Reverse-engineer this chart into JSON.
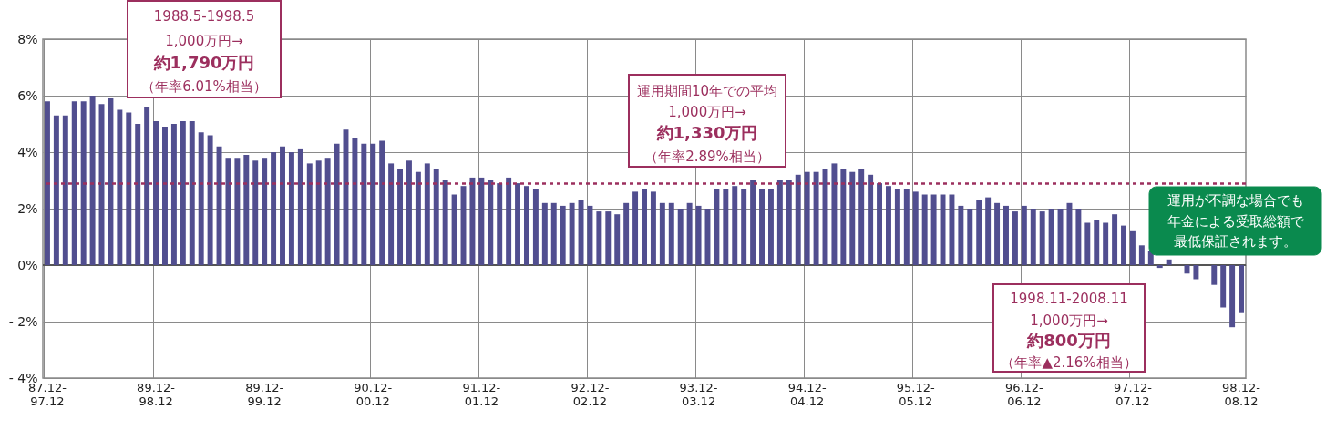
{
  "chart_data": {
    "type": "bar",
    "categories": [
      "87.12-97.12",
      null,
      null,
      null,
      null,
      null,
      null,
      null,
      null,
      null,
      null,
      null,
      "89.12-98.12",
      null,
      null,
      null,
      null,
      null,
      null,
      null,
      null,
      null,
      null,
      null,
      "89.12-99.12",
      null,
      null,
      null,
      null,
      null,
      null,
      null,
      null,
      null,
      null,
      null,
      "90.12-00.12",
      null,
      null,
      null,
      null,
      null,
      null,
      null,
      null,
      null,
      null,
      null,
      "91.12-01.12",
      null,
      null,
      null,
      null,
      null,
      null,
      null,
      null,
      null,
      null,
      null,
      "92.12-02.12",
      null,
      null,
      null,
      null,
      null,
      null,
      null,
      null,
      null,
      null,
      null,
      "93.12-03.12",
      null,
      null,
      null,
      null,
      null,
      null,
      null,
      null,
      null,
      null,
      null,
      "94.12-04.12",
      null,
      null,
      null,
      null,
      null,
      null,
      null,
      null,
      null,
      null,
      null,
      "95.12-05.12",
      null,
      null,
      null,
      null,
      null,
      null,
      null,
      null,
      null,
      null,
      null,
      "96.12-06.12",
      null,
      null,
      null,
      null,
      null,
      null,
      null,
      null,
      null,
      null,
      null,
      "97.12-07.12",
      null,
      null,
      null,
      null,
      null,
      null,
      null,
      null,
      null,
      null,
      null,
      "98.12-08.12"
    ],
    "values": [
      5.8,
      5.3,
      5.3,
      5.8,
      5.8,
      6.0,
      5.7,
      5.9,
      5.5,
      5.4,
      5.0,
      5.6,
      5.1,
      4.9,
      5.0,
      5.1,
      5.1,
      4.7,
      4.6,
      4.2,
      3.8,
      3.8,
      3.9,
      3.7,
      3.8,
      4.0,
      4.2,
      4.0,
      4.1,
      3.6,
      3.7,
      3.8,
      4.3,
      4.8,
      4.5,
      4.3,
      4.3,
      4.4,
      3.6,
      3.4,
      3.7,
      3.3,
      3.6,
      3.4,
      3.0,
      2.5,
      2.8,
      3.1,
      3.1,
      3.0,
      2.9,
      3.1,
      2.9,
      2.8,
      2.7,
      2.2,
      2.2,
      2.1,
      2.2,
      2.3,
      2.1,
      1.9,
      1.9,
      1.8,
      2.2,
      2.6,
      2.7,
      2.6,
      2.2,
      2.2,
      2.0,
      2.2,
      2.1,
      2.0,
      2.7,
      2.7,
      2.8,
      2.7,
      3.0,
      2.7,
      2.7,
      3.0,
      3.0,
      3.2,
      3.3,
      3.3,
      3.4,
      3.6,
      3.4,
      3.3,
      3.4,
      3.2,
      2.9,
      2.8,
      2.7,
      2.7,
      2.6,
      2.5,
      2.5,
      2.5,
      2.5,
      2.1,
      2.0,
      2.3,
      2.4,
      2.2,
      2.1,
      1.9,
      2.1,
      2.0,
      1.9,
      2.0,
      2.0,
      2.2,
      2.0,
      1.5,
      1.6,
      1.5,
      1.8,
      1.4,
      1.2,
      0.7,
      0.5,
      -0.1,
      0.2,
      0.0,
      -0.3,
      -0.5,
      0.0,
      -0.7,
      -1.5,
      -2.2,
      -1.7
    ],
    "color": "#514e8f",
    "ylim": [
      -4,
      8
    ],
    "yticks": [
      {
        "value": -4,
        "label": "- 4%"
      },
      {
        "value": -2,
        "label": "- 2%"
      },
      {
        "value": 0,
        "label": "0%"
      },
      {
        "value": 2,
        "label": "2%"
      },
      {
        "value": 4,
        "label": "4%"
      },
      {
        "value": 6,
        "label": "6%"
      },
      {
        "value": 8,
        "label": "8%"
      }
    ],
    "grid": true,
    "ref_lines": [
      {
        "axis": "y",
        "value": 2.89,
        "color": "#9c2f5e",
        "line_style": "dotted"
      }
    ],
    "annotations": [
      "1988.5-1998.5",
      "1,000万円→",
      "約1,790万円",
      "（年率6.01%相当）",
      "運用期間10年での平均",
      "1,000万円→",
      "約1,330万円",
      "（年率2.89%相当）",
      "1998.11-2008.11",
      "1,000万円→",
      "約800万円",
      "（年率▲2.16%相当）",
      "運用が不調な場合でも",
      "年金による受取総額で",
      "最低保証されます。"
    ]
  }
}
